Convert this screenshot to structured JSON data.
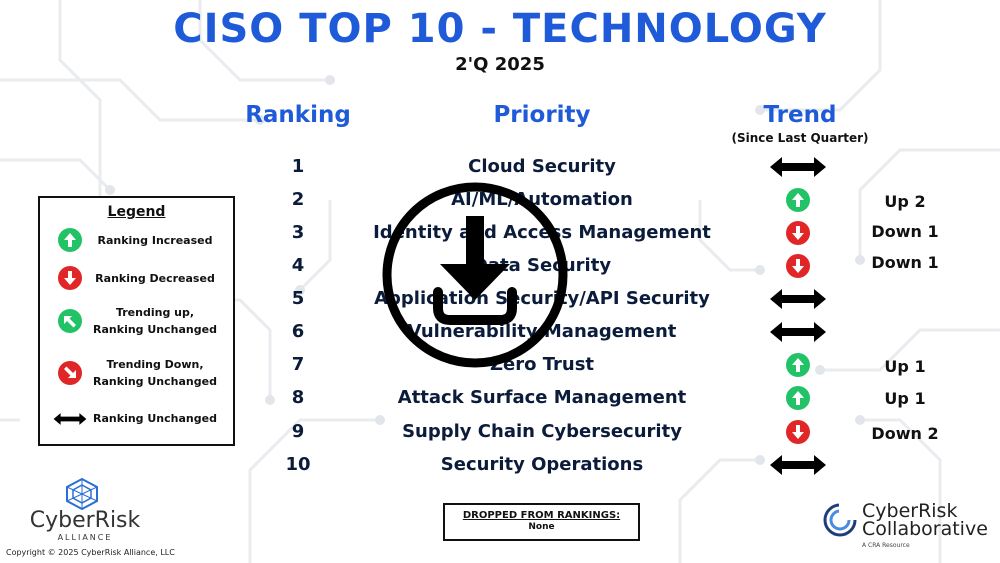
{
  "header": {
    "title": "CISO TOP 10 - TECHNOLOGY",
    "subtitle": "2'Q 2025"
  },
  "columns": {
    "ranking": "Ranking",
    "priority": "Priority",
    "trend": "Trend",
    "trend_sub": "(Since Last Quarter)"
  },
  "rows": [
    {
      "rank": "1",
      "priority": "Cloud Security",
      "trend": "unchanged",
      "change": ""
    },
    {
      "rank": "2",
      "priority": "AI/ML/Automation",
      "trend": "up",
      "change": "Up 2"
    },
    {
      "rank": "3",
      "priority": "Identity and Access Management",
      "trend": "down",
      "change": "Down 1"
    },
    {
      "rank": "4",
      "priority": "Data Security",
      "trend": "down",
      "change": "Down 1"
    },
    {
      "rank": "5",
      "priority": "Application Security/API Security",
      "trend": "unchanged",
      "change": ""
    },
    {
      "rank": "6",
      "priority": "Vulnerability Management",
      "trend": "unchanged",
      "change": ""
    },
    {
      "rank": "7",
      "priority": "Zero Trust",
      "trend": "up",
      "change": "Up 1"
    },
    {
      "rank": "8",
      "priority": "Attack Surface Management",
      "trend": "up",
      "change": "Up 1"
    },
    {
      "rank": "9",
      "priority": "Supply Chain Cybersecurity",
      "trend": "down",
      "change": "Down 2"
    },
    {
      "rank": "10",
      "priority": "Security Operations",
      "trend": "unchanged",
      "change": ""
    }
  ],
  "legend": {
    "title": "Legend",
    "items": [
      {
        "icon": "arrow-up-circle-icon",
        "label1": "Ranking Increased",
        "label2": ""
      },
      {
        "icon": "arrow-down-circle-icon",
        "label1": "Ranking Decreased",
        "label2": ""
      },
      {
        "icon": "trending-up-circle-icon",
        "label1": "Trending up,",
        "label2": "Ranking Unchanged"
      },
      {
        "icon": "trending-down-circle-icon",
        "label1": "Trending Down,",
        "label2": "Ranking Unchanged"
      },
      {
        "icon": "double-arrow-icon",
        "label1": "Ranking Unchanged",
        "label2": ""
      }
    ]
  },
  "dropped": {
    "title": "DROPPED FROM RANKINGS:",
    "value": "None"
  },
  "logos": {
    "left_name": "CyberRisk",
    "left_sub": "ALLIANCE",
    "copyright": "Copyright © 2025 CyberRisk Alliance, LLC",
    "right_name1": "CyberRisk",
    "right_name2": "Collaborative",
    "right_sub": "A CRA Resource"
  },
  "colors": {
    "title_blue": "#1f5bd8",
    "up_green": "#22c266",
    "down_red": "#e02626",
    "text_dark": "#0b1b3a"
  }
}
